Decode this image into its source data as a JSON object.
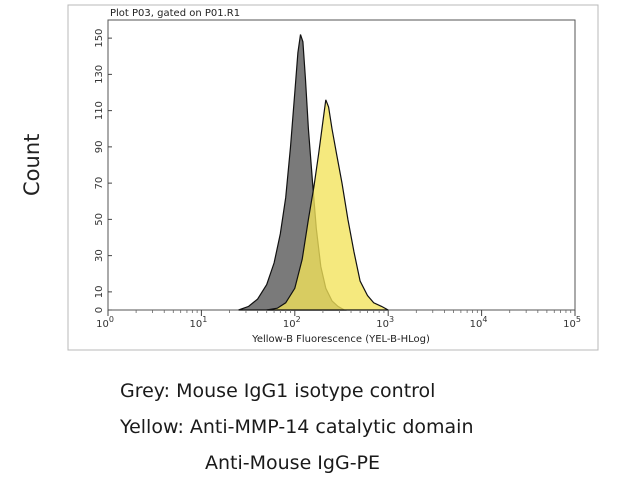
{
  "chart_data": {
    "type": "area",
    "title": "Plot P03, gated on P01.R1",
    "xlabel": "Yellow-B Fluorescence (YEL-B-HLog)",
    "ylabel": "Count",
    "xscale": "log",
    "xlim": [
      1,
      100000
    ],
    "ylim": [
      0,
      160
    ],
    "x_ticks": [
      {
        "value": 1,
        "base": "10",
        "exp": "0"
      },
      {
        "value": 10,
        "base": "10",
        "exp": "1"
      },
      {
        "value": 100,
        "base": "10",
        "exp": "2"
      },
      {
        "value": 1000,
        "base": "10",
        "exp": "3"
      },
      {
        "value": 10000,
        "base": "10",
        "exp": "4"
      },
      {
        "value": 100000,
        "base": "10",
        "exp": "5"
      }
    ],
    "y_ticks": [
      "0",
      "10",
      "30",
      "50",
      "70",
      "90",
      "110",
      "130",
      "150"
    ],
    "series": [
      {
        "name": "Grey",
        "color": "#7a7a7a",
        "x": [
          25,
          32,
          40,
          50,
          60,
          70,
          80,
          90,
          100,
          108,
          115,
          122,
          130,
          140,
          155,
          170,
          190,
          215,
          250,
          290,
          340
        ],
        "y": [
          0,
          2,
          6,
          14,
          26,
          42,
          62,
          90,
          120,
          142,
          152,
          148,
          128,
          100,
          70,
          45,
          24,
          12,
          5,
          2,
          0
        ]
      },
      {
        "name": "Yellow",
        "color": "#f2e35a",
        "x": [
          50,
          65,
          80,
          100,
          120,
          140,
          160,
          180,
          200,
          215,
          230,
          250,
          280,
          320,
          370,
          430,
          500,
          600,
          700,
          850,
          1000
        ],
        "y": [
          0,
          1,
          4,
          12,
          28,
          50,
          68,
          86,
          104,
          116,
          112,
          100,
          86,
          70,
          50,
          32,
          16,
          8,
          4,
          2,
          0
        ]
      }
    ]
  },
  "captions": {
    "line1": "Grey: Mouse IgG1 isotype control",
    "line2": "Yellow: Anti-MMP-14 catalytic domain",
    "line3": "Anti-Mouse IgG-PE"
  }
}
